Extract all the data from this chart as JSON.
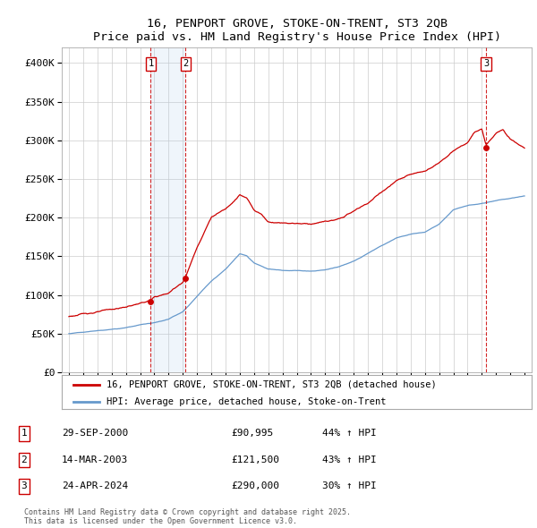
{
  "title": "16, PENPORT GROVE, STOKE-ON-TRENT, ST3 2QB",
  "subtitle": "Price paid vs. HM Land Registry's House Price Index (HPI)",
  "red_label": "16, PENPORT GROVE, STOKE-ON-TRENT, ST3 2QB (detached house)",
  "blue_label": "HPI: Average price, detached house, Stoke-on-Trent",
  "transactions": [
    {
      "num": 1,
      "date": "29-SEP-2000",
      "price": 90995,
      "price_str": "£90,995",
      "pct": "44%",
      "dir": "↑",
      "x_year": 2000.75
    },
    {
      "num": 2,
      "date": "14-MAR-2003",
      "price": 121500,
      "price_str": "£121,500",
      "pct": "43%",
      "dir": "↑",
      "x_year": 2003.2
    },
    {
      "num": 3,
      "date": "24-APR-2024",
      "price": 290000,
      "price_str": "£290,000",
      "pct": "30%",
      "dir": "↑",
      "x_year": 2024.3
    }
  ],
  "ylim": [
    0,
    420000
  ],
  "xlim": [
    1994.5,
    2027.5
  ],
  "yticks": [
    0,
    50000,
    100000,
    150000,
    200000,
    250000,
    300000,
    350000,
    400000
  ],
  "ytick_labels": [
    "£0",
    "£50K",
    "£100K",
    "£150K",
    "£200K",
    "£250K",
    "£300K",
    "£350K",
    "£400K"
  ],
  "xticks": [
    1995,
    1996,
    1997,
    1998,
    1999,
    2000,
    2001,
    2002,
    2003,
    2004,
    2005,
    2006,
    2007,
    2008,
    2009,
    2010,
    2011,
    2012,
    2013,
    2014,
    2015,
    2016,
    2017,
    2018,
    2019,
    2020,
    2021,
    2022,
    2023,
    2024,
    2025,
    2026,
    2027
  ],
  "red_color": "#cc0000",
  "blue_color": "#6699cc",
  "grid_color": "#cccccc",
  "background_color": "#ffffff",
  "footnote": "Contains HM Land Registry data © Crown copyright and database right 2025.\nThis data is licensed under the Open Government Licence v3.0.",
  "red_anchors_x": [
    1995,
    1996,
    1997,
    1998,
    1999,
    2000,
    2000.75,
    2001,
    2002,
    2003,
    2003.2,
    2004,
    2005,
    2006,
    2007,
    2007.5,
    2008,
    2008.5,
    2009,
    2010,
    2011,
    2012,
    2013,
    2014,
    2015,
    2016,
    2017,
    2018,
    2019,
    2020,
    2021,
    2022,
    2023,
    2023.5,
    2024,
    2024.3,
    2024.5,
    2025,
    2025.5,
    2026,
    2027
  ],
  "red_anchors_y": [
    72000,
    75000,
    78000,
    80000,
    83000,
    88000,
    90995,
    95000,
    100000,
    115000,
    121500,
    160000,
    200000,
    210000,
    230000,
    225000,
    210000,
    205000,
    195000,
    195000,
    195000,
    195000,
    198000,
    200000,
    210000,
    220000,
    235000,
    248000,
    255000,
    258000,
    270000,
    285000,
    295000,
    308000,
    312000,
    290000,
    295000,
    305000,
    310000,
    300000,
    290000
  ],
  "blue_anchors_x": [
    1995,
    1996,
    1997,
    1998,
    1999,
    2000,
    2001,
    2002,
    2003,
    2004,
    2005,
    2006,
    2007,
    2007.5,
    2008,
    2009,
    2010,
    2011,
    2012,
    2013,
    2014,
    2015,
    2016,
    2017,
    2018,
    2019,
    2020,
    2021,
    2022,
    2023,
    2024,
    2025,
    2026,
    2027
  ],
  "blue_anchors_y": [
    50000,
    52000,
    54000,
    56000,
    58000,
    62000,
    65000,
    70000,
    80000,
    100000,
    120000,
    135000,
    155000,
    152000,
    143000,
    135000,
    133000,
    133000,
    132000,
    134000,
    138000,
    145000,
    155000,
    165000,
    175000,
    180000,
    182000,
    192000,
    210000,
    215000,
    218000,
    222000,
    225000,
    228000
  ]
}
